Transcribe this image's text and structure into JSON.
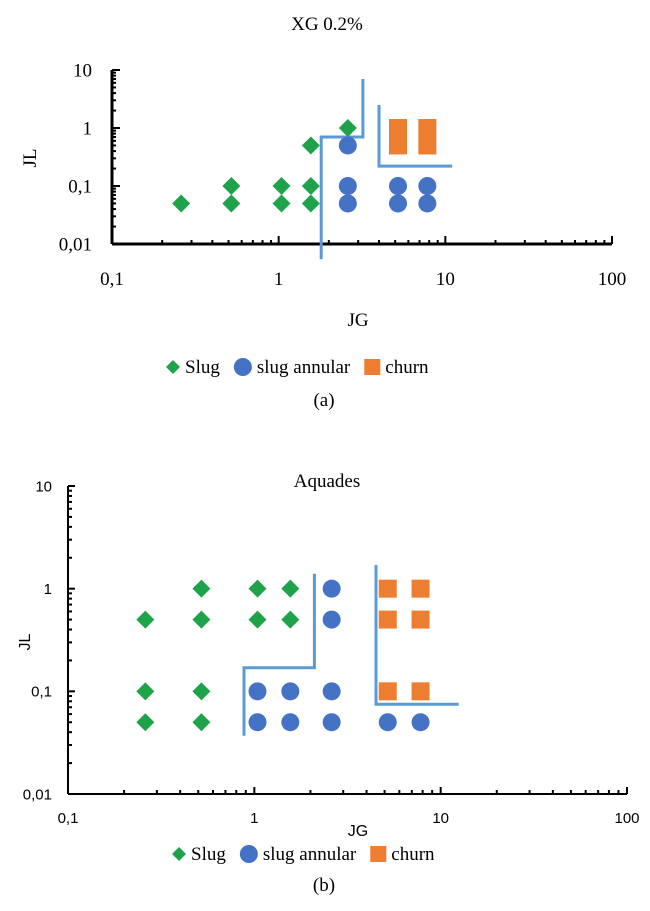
{
  "figure_labels": {
    "a": "(a)",
    "b": "(b)"
  },
  "chart_data": [
    {
      "type": "scatter",
      "title": "XG 0.2%",
      "xlabel": "JG",
      "ylabel": "JL",
      "x_scale": "log",
      "y_scale": "log",
      "xlim": [
        0.1,
        100
      ],
      "ylim": [
        0.01,
        10
      ],
      "x_ticks": [
        0.1,
        1,
        10,
        100
      ],
      "x_tick_labels": [
        "0,1",
        "1",
        "10",
        "100"
      ],
      "y_ticks": [
        0.01,
        0.1,
        1,
        10
      ],
      "y_tick_labels": [
        "0,01",
        "0,1",
        "1",
        "10"
      ],
      "grid": false,
      "legend_position": "bottom",
      "series": [
        {
          "name": "Slug",
          "marker": "diamond",
          "color": "#1FA34A",
          "points": [
            [
              0.26,
              0.05
            ],
            [
              0.52,
              0.05
            ],
            [
              0.52,
              0.1
            ],
            [
              1.04,
              0.05
            ],
            [
              1.04,
              0.1
            ],
            [
              1.56,
              0.05
            ],
            [
              1.56,
              0.1
            ],
            [
              1.56,
              0.5
            ],
            [
              2.6,
              1
            ]
          ]
        },
        {
          "name": "slug annular",
          "marker": "circle",
          "color": "#4472C4",
          "points": [
            [
              2.6,
              0.05
            ],
            [
              2.6,
              0.1
            ],
            [
              2.6,
              0.5
            ],
            [
              5.2,
              0.05
            ],
            [
              5.2,
              0.1
            ],
            [
              7.8,
              0.05
            ],
            [
              7.8,
              0.1
            ]
          ]
        },
        {
          "name": "churn",
          "marker": "square",
          "color": "#ED7D31",
          "points": [
            [
              5.2,
              0.5
            ],
            [
              5.2,
              1
            ],
            [
              7.8,
              0.5
            ],
            [
              7.8,
              1
            ]
          ]
        }
      ],
      "boundaries": [
        {
          "color": "#5B9BD5",
          "points": [
            [
              1.8,
              0.0055
            ],
            [
              1.8,
              0.7
            ],
            [
              3.2,
              0.7
            ],
            [
              3.2,
              7
            ]
          ]
        },
        {
          "color": "#5B9BD5",
          "points": [
            [
              4,
              2.5
            ],
            [
              4,
              0.22
            ],
            [
              11,
              0.22
            ]
          ]
        }
      ]
    },
    {
      "type": "scatter",
      "title": "Aquades",
      "xlabel": "JG",
      "ylabel": "JL",
      "x_scale": "log",
      "y_scale": "log",
      "xlim": [
        0.1,
        100
      ],
      "ylim": [
        0.01,
        10
      ],
      "x_ticks": [
        0.1,
        1,
        10,
        100
      ],
      "x_tick_labels": [
        "0,1",
        "1",
        "10",
        "100"
      ],
      "y_ticks": [
        0.01,
        0.1,
        1,
        10
      ],
      "y_tick_labels": [
        "0,01",
        "0,1",
        "1",
        "10"
      ],
      "grid": false,
      "legend_position": "bottom",
      "series": [
        {
          "name": "Slug",
          "marker": "diamond",
          "color": "#1FA34A",
          "points": [
            [
              0.26,
              0.05
            ],
            [
              0.26,
              0.1
            ],
            [
              0.26,
              0.5
            ],
            [
              0.52,
              0.05
            ],
            [
              0.52,
              0.1
            ],
            [
              0.52,
              0.5
            ],
            [
              0.52,
              1
            ],
            [
              1.04,
              0.5
            ],
            [
              1.04,
              1
            ],
            [
              1.56,
              0.5
            ],
            [
              1.56,
              1
            ]
          ]
        },
        {
          "name": "slug annular",
          "marker": "circle",
          "color": "#4472C4",
          "points": [
            [
              1.04,
              0.05
            ],
            [
              1.04,
              0.1
            ],
            [
              1.56,
              0.05
            ],
            [
              1.56,
              0.1
            ],
            [
              2.6,
              0.05
            ],
            [
              2.6,
              0.1
            ],
            [
              2.6,
              0.5
            ],
            [
              2.6,
              1
            ],
            [
              5.2,
              0.05
            ],
            [
              7.8,
              0.05
            ]
          ]
        },
        {
          "name": "churn",
          "marker": "square",
          "color": "#ED7D31",
          "points": [
            [
              5.2,
              0.1
            ],
            [
              5.2,
              0.5
            ],
            [
              5.2,
              1
            ],
            [
              7.8,
              0.1
            ],
            [
              7.8,
              0.5
            ],
            [
              7.8,
              1
            ]
          ]
        }
      ],
      "boundaries": [
        {
          "color": "#5B9BD5",
          "points": [
            [
              0.88,
              0.037
            ],
            [
              0.88,
              0.17
            ],
            [
              2.1,
              0.17
            ],
            [
              2.1,
              1.4
            ]
          ]
        },
        {
          "color": "#5B9BD5",
          "points": [
            [
              4.5,
              1.7
            ],
            [
              4.5,
              0.075
            ],
            [
              12.5,
              0.075
            ]
          ]
        }
      ]
    }
  ]
}
